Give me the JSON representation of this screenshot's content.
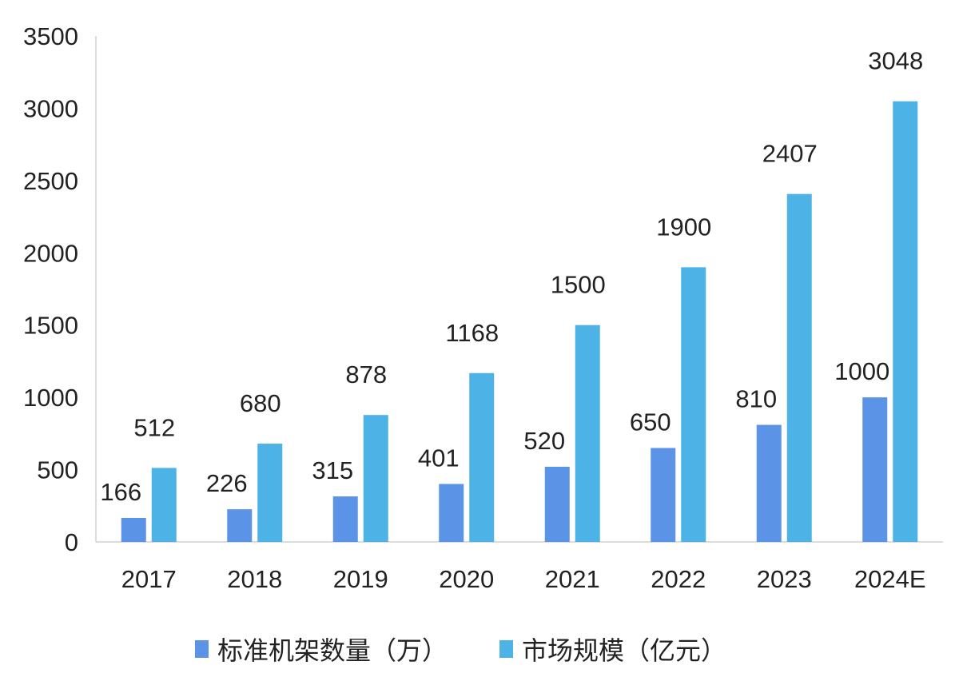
{
  "chart_data": {
    "type": "bar",
    "title": "",
    "xlabel": "",
    "ylabel": "",
    "categories": [
      "2017",
      "2018",
      "2019",
      "2020",
      "2021",
      "2022",
      "2023",
      "2024E"
    ],
    "series": [
      {
        "name": "标准机架数量（万）",
        "color": "#5b93e6",
        "values": [
          166,
          226,
          315,
          401,
          520,
          650,
          810,
          1000
        ]
      },
      {
        "name": "市场规模（亿元）",
        "color": "#4db3e6",
        "values": [
          512,
          680,
          878,
          1168,
          1500,
          1900,
          2407,
          3048
        ]
      }
    ],
    "ylim": [
      0,
      3500
    ],
    "yticks": [
      0,
      500,
      1000,
      1500,
      2000,
      2500,
      3000,
      3500
    ],
    "grid": false,
    "legend": "bottom",
    "data_labels": true
  }
}
